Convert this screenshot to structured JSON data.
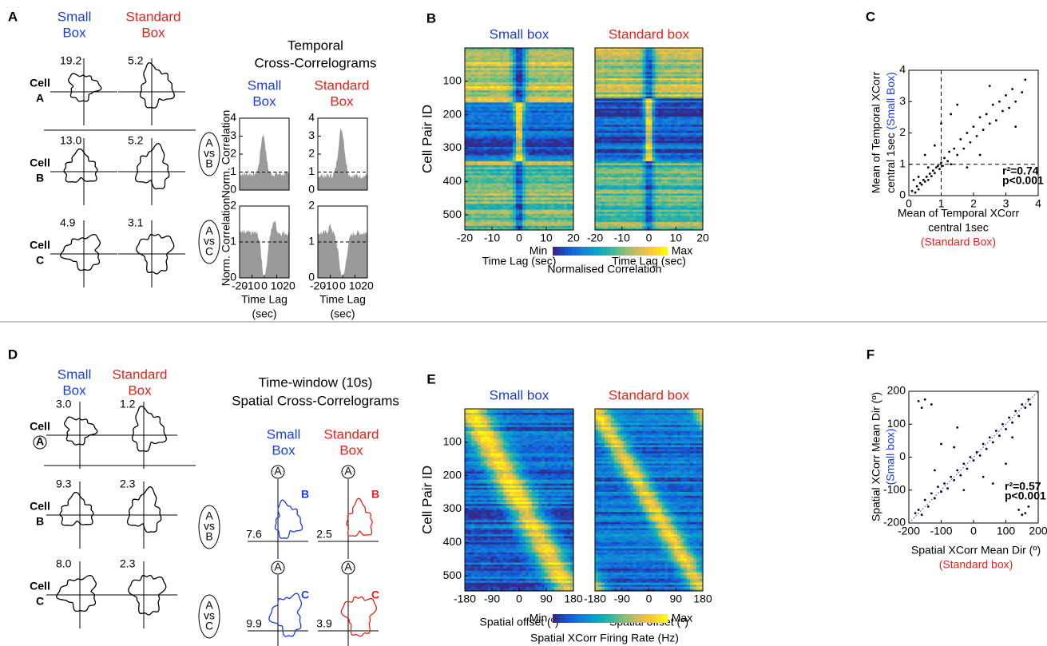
{
  "panel_a": {
    "letter": "A",
    "small": [
      "Small",
      "Box"
    ],
    "standard": [
      "Standard",
      "Box"
    ],
    "cells": [
      {
        "label": [
          "Cell",
          "A"
        ],
        "small_peak": "19.2",
        "standard_peak": "5.2"
      },
      {
        "label": [
          "Cell",
          "B"
        ],
        "small_peak": "13.0",
        "standard_peak": "5.2"
      },
      {
        "label": [
          "Cell",
          "C"
        ],
        "small_peak": "4.9",
        "standard_peak": "3.1"
      }
    ],
    "xcorr": {
      "title": [
        "Temporal",
        "Cross-Correlograms"
      ],
      "small": [
        "Small",
        "Box"
      ],
      "standard": [
        "Standard",
        "Box"
      ],
      "pairs": [
        [
          "A",
          "vs",
          "B"
        ],
        [
          "A",
          "vs",
          "C"
        ]
      ],
      "ylabel": "Norm. Correlation",
      "ylims": [
        [
          0,
          4
        ],
        [
          0,
          2
        ]
      ],
      "yticks": [
        [
          0,
          1,
          2,
          3,
          4
        ],
        [
          0,
          1,
          2
        ]
      ],
      "xlim": [
        -20,
        20
      ],
      "xticks": [
        -20,
        -10,
        0,
        10,
        20
      ],
      "xlabel": [
        "Time Lag",
        "(sec)"
      ]
    }
  },
  "panel_b": {
    "letter": "B",
    "titles": [
      "Small box",
      "Standard box"
    ],
    "ylabel": "Cell Pair ID",
    "ylim": [
      0,
      545
    ],
    "yticks": [
      100,
      200,
      300,
      400,
      500
    ],
    "xlim": [
      -20,
      20
    ],
    "xticks": [
      -20,
      -10,
      0,
      10,
      20
    ],
    "xlabel": "Time Lag (sec)",
    "colorbar": {
      "min": "Min",
      "max": "Max",
      "label": "Normalised Correlation"
    }
  },
  "panel_c": {
    "letter": "C",
    "ylabel": [
      "Mean of Temporal XCorr",
      "central 1sec",
      "(Small Box)"
    ],
    "xlabel": [
      "Mean of Temporal XCorr",
      "central 1sec",
      "(Standard Box)"
    ],
    "xlim": [
      0,
      4
    ],
    "ylim": [
      0,
      4
    ],
    "xticks": [
      0,
      1,
      2,
      3,
      4
    ],
    "yticks": [
      0,
      1,
      2,
      3,
      4
    ],
    "stats": [
      "r²=0.74",
      "p<0.001"
    ],
    "points": [
      [
        0.1,
        0.15
      ],
      [
        0.2,
        0.1
      ],
      [
        0.25,
        0.3
      ],
      [
        0.3,
        0.2
      ],
      [
        0.35,
        0.4
      ],
      [
        0.4,
        0.35
      ],
      [
        0.45,
        0.5
      ],
      [
        0.5,
        0.45
      ],
      [
        0.55,
        0.6
      ],
      [
        0.6,
        0.5
      ],
      [
        0.65,
        0.7
      ],
      [
        0.7,
        0.62
      ],
      [
        0.75,
        0.8
      ],
      [
        0.8,
        0.72
      ],
      [
        0.85,
        0.9
      ],
      [
        0.9,
        0.95
      ],
      [
        0.95,
        0.85
      ],
      [
        1.0,
        1.05
      ],
      [
        1.05,
        0.95
      ],
      [
        1.1,
        1.2
      ],
      [
        1.2,
        1.1
      ],
      [
        1.25,
        1.4
      ],
      [
        1.3,
        1.0
      ],
      [
        1.4,
        1.5
      ],
      [
        1.5,
        1.3
      ],
      [
        1.6,
        1.8
      ],
      [
        1.7,
        1.5
      ],
      [
        1.8,
        2.0
      ],
      [
        1.9,
        1.7
      ],
      [
        2.0,
        2.2
      ],
      [
        2.1,
        1.9
      ],
      [
        2.2,
        2.5
      ],
      [
        2.3,
        2.1
      ],
      [
        2.4,
        2.6
      ],
      [
        2.5,
        2.3
      ],
      [
        2.6,
        2.9
      ],
      [
        2.7,
        2.4
      ],
      [
        2.8,
        3.0
      ],
      [
        2.9,
        2.7
      ],
      [
        3.0,
        3.2
      ],
      [
        3.1,
        2.8
      ],
      [
        3.2,
        3.4
      ],
      [
        3.3,
        3.0
      ],
      [
        3.5,
        3.3
      ],
      [
        3.6,
        3.7
      ],
      [
        0.5,
        1.3
      ],
      [
        0.8,
        1.6
      ],
      [
        1.0,
        2.3
      ],
      [
        1.3,
        2.6
      ],
      [
        1.8,
        0.9
      ],
      [
        2.2,
        1.3
      ],
      [
        0.3,
        0.6
      ],
      [
        0.6,
        0.9
      ],
      [
        0.15,
        0.5
      ],
      [
        1.5,
        2.9
      ],
      [
        2.5,
        3.5
      ],
      [
        3.3,
        2.2
      ]
    ]
  },
  "panel_d": {
    "letter": "D",
    "small": [
      "Small",
      "Box"
    ],
    "standard": [
      "Standard",
      "Box"
    ],
    "cells": [
      {
        "label": [
          "Cell",
          "A"
        ],
        "small_peak": "3.0",
        "standard_peak": "1.2"
      },
      {
        "label": [
          "Cell",
          "B"
        ],
        "small_peak": "9.3",
        "standard_peak": "2.3"
      },
      {
        "label": [
          "Cell",
          "C"
        ],
        "small_peak": "8.0",
        "standard_peak": "2.3"
      }
    ],
    "xcorr": {
      "title": [
        "Time-window (10s)",
        "Spatial Cross-Correlograms"
      ],
      "small": [
        "Small",
        "Box"
      ],
      "standard": [
        "Standard",
        "Box"
      ],
      "pairs": [
        [
          "A",
          "vs",
          "B"
        ],
        [
          "A",
          "vs",
          "C"
        ]
      ],
      "anchor": "A",
      "loop_labels": [
        "B",
        "C"
      ],
      "peaks": [
        [
          "7.6",
          "2.5"
        ],
        [
          "9.9",
          "3.9"
        ]
      ]
    }
  },
  "panel_e": {
    "letter": "E",
    "titles": [
      "Small box",
      "Standard box"
    ],
    "ylabel": "Cell Pair ID",
    "ylim": [
      0,
      545
    ],
    "yticks": [
      100,
      200,
      300,
      400,
      500
    ],
    "xlim": [
      -180,
      180
    ],
    "xticks": [
      -180,
      -90,
      0,
      90,
      180
    ],
    "xlabel": "Spatial offset (º)",
    "colorbar": {
      "min": "Min",
      "max": "Max",
      "label": "Spatial XCorr Firing Rate (Hz)"
    }
  },
  "panel_f": {
    "letter": "F",
    "ylabel": [
      "Spatial XCorr Mean Dir (º)",
      "(Small box)"
    ],
    "xlabel": [
      "Spatial XCorr Mean Dir (º)",
      "(Standard box)"
    ],
    "xlim": [
      -200,
      200
    ],
    "ylim": [
      -200,
      200
    ],
    "xticks": [
      -200,
      -100,
      0,
      100,
      200
    ],
    "yticks": [
      -200,
      -100,
      0,
      100,
      200
    ],
    "stats": [
      "r²=0.57",
      "p<0.001"
    ],
    "points": [
      [
        -180,
        -170
      ],
      [
        -170,
        -160
      ],
      [
        -160,
        -175
      ],
      [
        -150,
        -130
      ],
      [
        -140,
        -150
      ],
      [
        -130,
        -110
      ],
      [
        -120,
        -125
      ],
      [
        -110,
        -90
      ],
      [
        -100,
        -105
      ],
      [
        -90,
        -80
      ],
      [
        -80,
        -95
      ],
      [
        -70,
        -60
      ],
      [
        -60,
        -70
      ],
      [
        -50,
        -40
      ],
      [
        -40,
        -55
      ],
      [
        -30,
        -20
      ],
      [
        -20,
        -35
      ],
      [
        -10,
        0
      ],
      [
        0,
        -10
      ],
      [
        10,
        15
      ],
      [
        20,
        5
      ],
      [
        30,
        40
      ],
      [
        40,
        25
      ],
      [
        50,
        60
      ],
      [
        60,
        45
      ],
      [
        70,
        80
      ],
      [
        80,
        65
      ],
      [
        90,
        100
      ],
      [
        100,
        85
      ],
      [
        110,
        120
      ],
      [
        120,
        105
      ],
      [
        130,
        140
      ],
      [
        140,
        125
      ],
      [
        150,
        160
      ],
      [
        160,
        150
      ],
      [
        170,
        175
      ],
      [
        175,
        160
      ],
      [
        -170,
        170
      ],
      [
        -160,
        150
      ],
      [
        -150,
        175
      ],
      [
        -130,
        160
      ],
      [
        160,
        -170
      ],
      [
        170,
        -150
      ],
      [
        150,
        -175
      ],
      [
        140,
        -160
      ],
      [
        -100,
        40
      ],
      [
        -50,
        90
      ],
      [
        60,
        -80
      ],
      [
        100,
        -20
      ],
      [
        -120,
        -40
      ],
      [
        30,
        -60
      ],
      [
        -60,
        30
      ],
      [
        120,
        60
      ],
      [
        -30,
        -100
      ]
    ]
  }
}
